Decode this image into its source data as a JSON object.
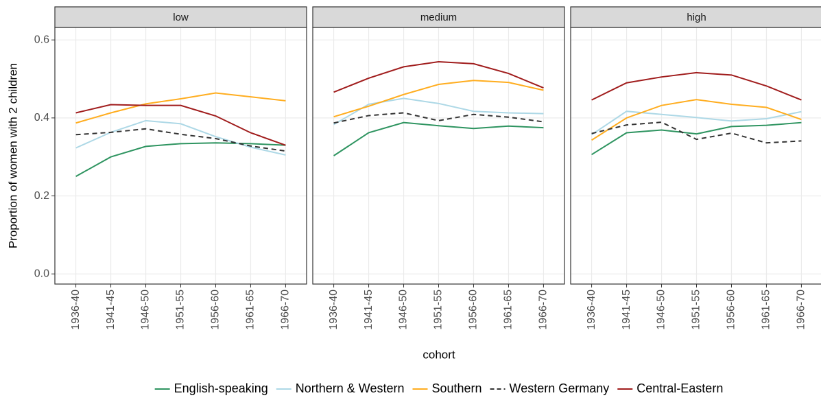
{
  "chart_data": {
    "type": "line",
    "y_label": "Proportion of women with 2 children",
    "x_label": "cohort",
    "facets": [
      "low",
      "medium",
      "high"
    ],
    "categories": [
      "1936-40",
      "1941-45",
      "1946-50",
      "1951-55",
      "1956-60",
      "1961-65",
      "1966-70"
    ],
    "ylim": [
      -0.026,
      0.632
    ],
    "yticks": [
      {
        "value": 0,
        "label": "0.0"
      },
      0.2,
      0.4,
      0.6
    ],
    "grid": true,
    "legend": "bottom",
    "series": [
      {
        "name": "English-speaking",
        "color": "#2e9460",
        "linestyle": "solid",
        "values": [
          [
            0.25,
            0.3,
            0.327,
            0.334,
            0.336,
            0.334,
            0.33
          ],
          [
            0.303,
            0.362,
            0.388,
            0.38,
            0.373,
            0.379,
            0.375
          ],
          [
            0.306,
            0.362,
            0.369,
            0.359,
            0.378,
            0.381,
            0.388
          ]
        ]
      },
      {
        "name": "Northern & Western",
        "color": "#add8e6",
        "linestyle": "solid",
        "values": [
          [
            0.323,
            0.363,
            0.393,
            0.385,
            0.352,
            0.325,
            0.305
          ],
          [
            0.383,
            0.435,
            0.45,
            0.437,
            0.417,
            0.413,
            0.411
          ],
          [
            0.357,
            0.417,
            0.409,
            0.401,
            0.392,
            0.398,
            0.416
          ]
        ]
      },
      {
        "name": "Southern",
        "color": "#ffad1f",
        "linestyle": "solid",
        "values": [
          [
            0.387,
            0.413,
            0.436,
            0.449,
            0.464,
            0.454,
            0.444
          ],
          [
            0.403,
            0.43,
            0.46,
            0.486,
            0.496,
            0.491,
            0.471
          ],
          [
            0.343,
            0.4,
            0.432,
            0.447,
            0.435,
            0.427,
            0.396
          ]
        ]
      },
      {
        "name": "Western Germany",
        "color": "#333333",
        "linestyle": "dashed",
        "values": [
          [
            0.357,
            0.363,
            0.372,
            0.358,
            0.347,
            0.328,
            0.315
          ],
          [
            0.387,
            0.406,
            0.413,
            0.393,
            0.409,
            0.402,
            0.39
          ],
          [
            0.36,
            0.382,
            0.389,
            0.345,
            0.361,
            0.336,
            0.341
          ]
        ]
      },
      {
        "name": "Central-Eastern",
        "color": "#a01c1c",
        "linestyle": "solid",
        "values": [
          [
            0.413,
            0.434,
            0.432,
            0.432,
            0.405,
            0.362,
            0.33
          ],
          [
            0.466,
            0.502,
            0.531,
            0.544,
            0.539,
            0.514,
            0.477
          ],
          [
            0.446,
            0.49,
            0.505,
            0.516,
            0.51,
            0.482,
            0.446
          ]
        ]
      }
    ]
  }
}
